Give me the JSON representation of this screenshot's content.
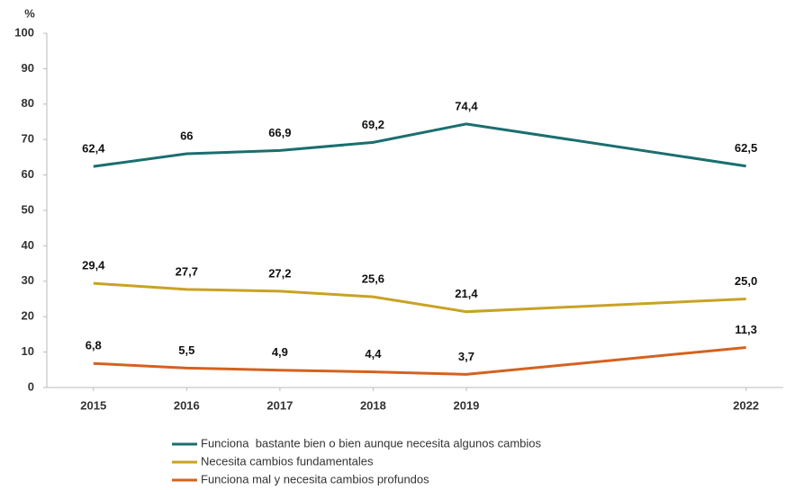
{
  "chart_data": {
    "type": "line",
    "y_label": "%",
    "x": [
      2015,
      2016,
      2017,
      2018,
      2019,
      2022
    ],
    "xlim": [
      2014.5,
      2022.4
    ],
    "xticks": [
      2015,
      2016,
      2017,
      2018,
      2019,
      2022
    ],
    "ylim": [
      0,
      100
    ],
    "yticks": [
      0,
      10,
      20,
      30,
      40,
      50,
      60,
      70,
      80,
      90,
      100
    ],
    "grid": false,
    "legend": "bottom",
    "series": [
      {
        "name": "Funciona  bastante bien o bien aunque necesita algunos cambios",
        "color": "#1b6e6e",
        "values": [
          62.4,
          66,
          66.9,
          69.2,
          74.4,
          62.5
        ],
        "value_labels": [
          "62,4",
          "66",
          "66,9",
          "69,2",
          "74,4",
          "62,5"
        ]
      },
      {
        "name": "Necesita cambios fundamentales",
        "color": "#c9a225",
        "values": [
          29.4,
          27.7,
          27.2,
          25.6,
          21.4,
          25.0
        ],
        "value_labels": [
          "29,4",
          "27,7",
          "27,2",
          "25,6",
          "21,4",
          "25,0"
        ]
      },
      {
        "name": "Funciona mal y necesita cambios profundos",
        "color": "#d4621e",
        "values": [
          6.8,
          5.5,
          4.9,
          4.4,
          3.7,
          11.3
        ],
        "value_labels": [
          "6,8",
          "5,5",
          "4,9",
          "4,4",
          "3,7",
          "11,3"
        ]
      }
    ]
  }
}
